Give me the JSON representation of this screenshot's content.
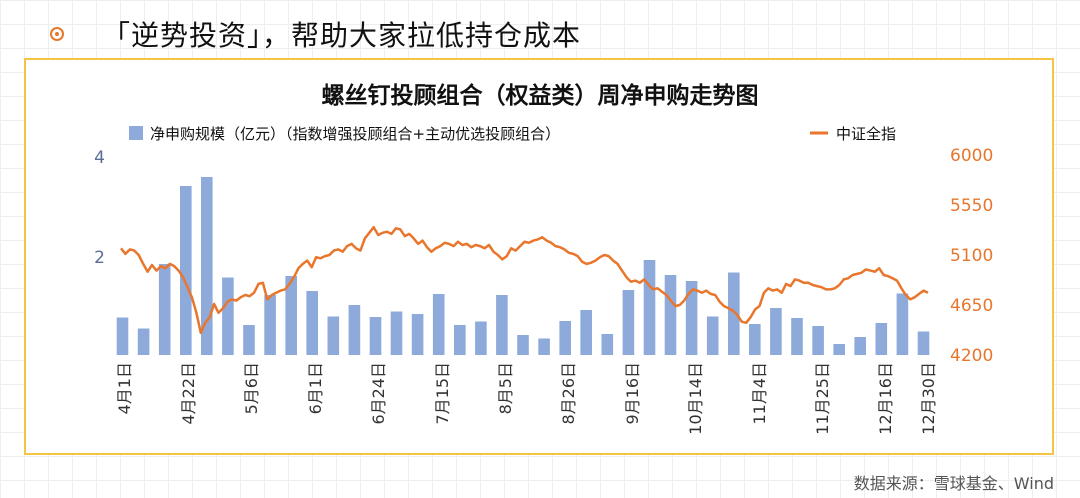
{
  "headline": "「逆势投资」，帮助大家拉低持仓成本",
  "source": "数据来源：雪球基金、Wind",
  "chart_data": {
    "type": "bar+line",
    "title": "螺丝钉投顾组合（权益类）周净申购走势图",
    "legend": {
      "bar": "净申购规模（亿元）（指数增强投顾组合+主动优选投顾组合）",
      "line": "中证全指"
    },
    "colors": {
      "bar": "#8eaadb",
      "line": "#e8762c",
      "left_axis": "#5a6e99",
      "right_axis": "#e8762c"
    },
    "left_axis": {
      "ylim": [
        0,
        4
      ],
      "ticks": [
        "2",
        "4"
      ]
    },
    "right_axis": {
      "ylim": [
        4200,
        6000
      ],
      "ticks": [
        "4200",
        "4650",
        "5100",
        "5550",
        "6000"
      ]
    },
    "x_tick_labels": [
      "4月1日",
      "4月22日",
      "5月6日",
      "6月1日",
      "6月24日",
      "7月15日",
      "8月5日",
      "8月26日",
      "9月16日",
      "10月14日",
      "11月4日",
      "11月25日",
      "12月16日",
      "12月30日"
    ],
    "bars": [
      0.75,
      0.53,
      1.82,
      3.38,
      3.56,
      1.55,
      0.6,
      1.2,
      1.58,
      1.28,
      0.77,
      1.0,
      0.76,
      0.87,
      0.82,
      1.22,
      0.6,
      0.67,
      1.2,
      0.4,
      0.33,
      0.68,
      0.9,
      0.42,
      1.3,
      1.9,
      1.6,
      1.48,
      0.77,
      1.65,
      0.62,
      0.94,
      0.74,
      0.58,
      0.22,
      0.36,
      0.64,
      1.23,
      0.47
    ],
    "line": [
      5160,
      5110,
      5150,
      5140,
      5100,
      5020,
      4950,
      5010,
      4960,
      5000,
      4980,
      5020,
      5000,
      4960,
      4900,
      4810,
      4720,
      4580,
      4400,
      4490,
      4540,
      4660,
      4580,
      4620,
      4680,
      4700,
      4690,
      4720,
      4740,
      4730,
      4760,
      4840,
      4850,
      4700,
      4740,
      4760,
      4780,
      4790,
      4840,
      4900,
      4980,
      5020,
      5050,
      4990,
      5080,
      5070,
      5090,
      5100,
      5140,
      5150,
      5130,
      5180,
      5200,
      5160,
      5140,
      5250,
      5300,
      5350,
      5280,
      5300,
      5310,
      5290,
      5340,
      5330,
      5270,
      5290,
      5250,
      5200,
      5230,
      5170,
      5130,
      5160,
      5180,
      5210,
      5200,
      5180,
      5220,
      5190,
      5200,
      5170,
      5190,
      5180,
      5160,
      5190,
      5130,
      5100,
      5060,
      5090,
      5160,
      5140,
      5180,
      5220,
      5210,
      5230,
      5240,
      5260,
      5230,
      5210,
      5180,
      5170,
      5150,
      5120,
      5110,
      5090,
      5040,
      5020,
      5030,
      5050,
      5080,
      5100,
      5090,
      5050,
      5020,
      4960,
      4900,
      4860,
      4870,
      4850,
      4880,
      4830,
      4790,
      4800,
      4770,
      4740,
      4690,
      4640,
      4650,
      4690,
      4750,
      4790,
      4780,
      4760,
      4780,
      4750,
      4740,
      4680,
      4640,
      4620,
      4600,
      4560,
      4500,
      4490,
      4540,
      4610,
      4640,
      4760,
      4800,
      4780,
      4790,
      4760,
      4840,
      4820,
      4880,
      4870,
      4850,
      4850,
      4830,
      4820,
      4810,
      4790,
      4790,
      4800,
      4830,
      4880,
      4890,
      4920,
      4930,
      4940,
      4970,
      4960,
      4950,
      4980,
      4920,
      4910,
      4890,
      4870,
      4800,
      4740,
      4700,
      4720,
      4750,
      4780,
      4760
    ]
  }
}
